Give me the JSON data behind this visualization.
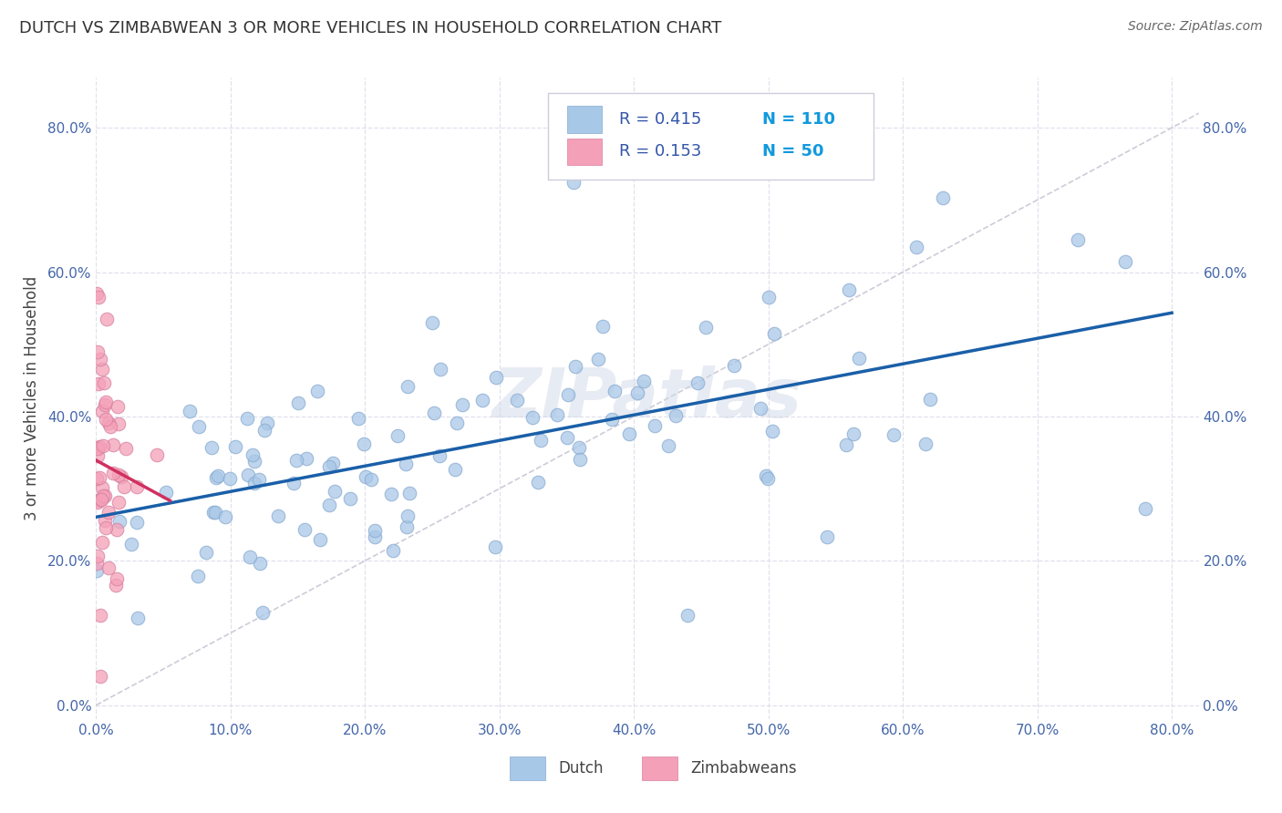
{
  "title": "DUTCH VS ZIMBABWEAN 3 OR MORE VEHICLES IN HOUSEHOLD CORRELATION CHART",
  "source": "Source: ZipAtlas.com",
  "ylabel": "3 or more Vehicles in Household",
  "xlim": [
    0.0,
    0.82
  ],
  "ylim": [
    -0.02,
    0.87
  ],
  "dutch_R": 0.415,
  "dutch_N": 110,
  "zimb_R": 0.153,
  "zimb_N": 50,
  "dutch_color": "#a8c8e8",
  "dutch_edge_color": "#88aad0",
  "dutch_line_color": "#1a5fa8",
  "zimb_color": "#f4a0b8",
  "zimb_edge_color": "#d880a0",
  "zimb_line_color": "#d03060",
  "diag_color": "#c0c0d0",
  "legend_text_color": "#3355aa",
  "legend_N_color": "#1199dd",
  "title_color": "#333333",
  "source_color": "#666666",
  "axis_label_color": "#444444",
  "tick_color": "#4466aa",
  "background_color": "#ffffff",
  "grid_color": "#e0e0ee",
  "watermark": "ZIPatlas",
  "watermark_color": "#d0d8e8"
}
